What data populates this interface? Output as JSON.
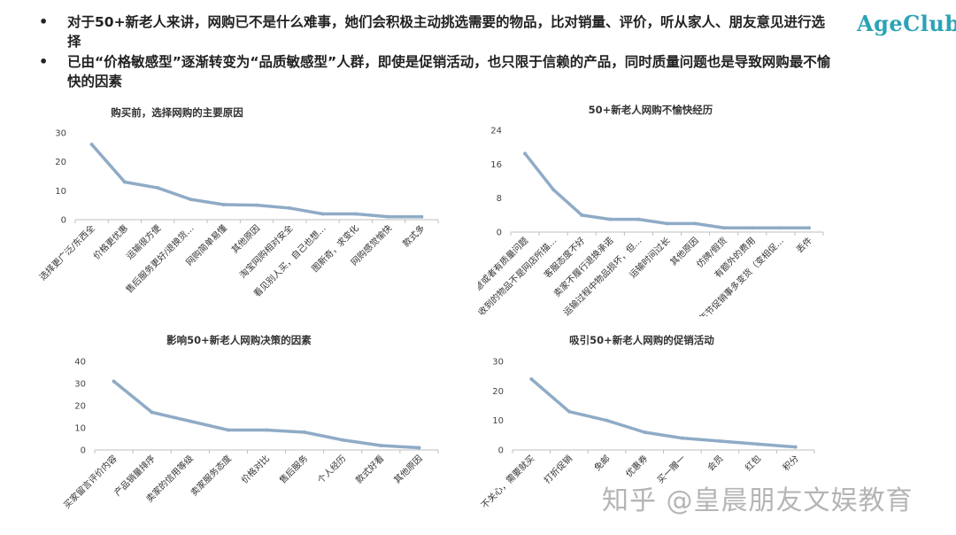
{
  "bullets": [
    "对于50+新老人来讲，网购已不是什么难事，她们会积极主动挑选需要的物品，比对销量、评价，听从家人、朋友意见进行选择",
    "已由“价格敏感型”逐渐转变为“品质敏感型”人群，即使是促销活动，也只限于信赖的产品，同时质量问题也是导致网购最不愉快的因素"
  ],
  "bullet_marker": "•",
  "logo": "AgeClub",
  "watermark": "知乎 @皇晨朋友文娱教育",
  "colors": {
    "series": "#8fabc6",
    "axis": "#bfbfbf",
    "logo": "#2aa3b5"
  },
  "chart_data": [
    {
      "type": "line",
      "title": "购买前，选择网购的主要原因",
      "categories": [
        "选择更广泛/东西全",
        "价格更优惠",
        "运输很方便",
        "售后服务更好/退换货…",
        "网购简单易懂",
        "其他原因",
        "淘宝网购相对安全",
        "看见别人买，自己也想…",
        "图新奇，求变化",
        "网购感觉愉快",
        "款式多"
      ],
      "values": [
        26,
        13,
        11,
        7,
        5.2,
        5,
        4,
        2,
        2,
        1,
        1
      ],
      "yticks": [
        0,
        10,
        20,
        30
      ],
      "ylim": [
        0,
        30
      ]
    },
    {
      "type": "line",
      "title": "50+新老人网购不愉快经历",
      "categories": [
        "不合心意或者有质量问题",
        "收到的物品不是网店所描…",
        "客服态度不好",
        "卖家不履行退换承诺",
        "运输过程中物品损坏，但…",
        "运输时间过长",
        "其他原因",
        "仿牌/假货",
        "有额外的费用",
        "年节促销事多变货（变相促…",
        "丢件"
      ],
      "values": [
        18.5,
        10,
        4,
        3,
        3,
        2,
        2,
        1,
        1,
        1,
        1
      ],
      "yticks": [
        0,
        8,
        16,
        24
      ],
      "ylim": [
        0,
        24
      ]
    },
    {
      "type": "line",
      "title": "影响50+新老人网购决策的因素",
      "categories": [
        "买家留言评价内容",
        "产品销量排序",
        "卖家的信用等级",
        "卖家服务态度",
        "价格对比",
        "售后服务",
        "个人经历",
        "款式好看",
        "其他原因"
      ],
      "values": [
        31,
        17,
        13,
        9,
        9,
        8,
        4.5,
        2,
        1
      ],
      "yticks": [
        0,
        10,
        20,
        30,
        40
      ],
      "ylim": [
        0,
        40
      ]
    },
    {
      "type": "line",
      "title": "吸引50+新老人网购的促销活动",
      "categories": [
        "不关心，需要就买",
        "打折促销",
        "免邮",
        "优惠券",
        "买一赠一",
        "会员",
        "红包",
        "积分"
      ],
      "values": [
        24,
        13,
        10,
        6,
        4,
        3,
        2,
        1
      ],
      "yticks": [
        0,
        10,
        20,
        30
      ],
      "ylim": [
        0,
        30
      ]
    }
  ]
}
